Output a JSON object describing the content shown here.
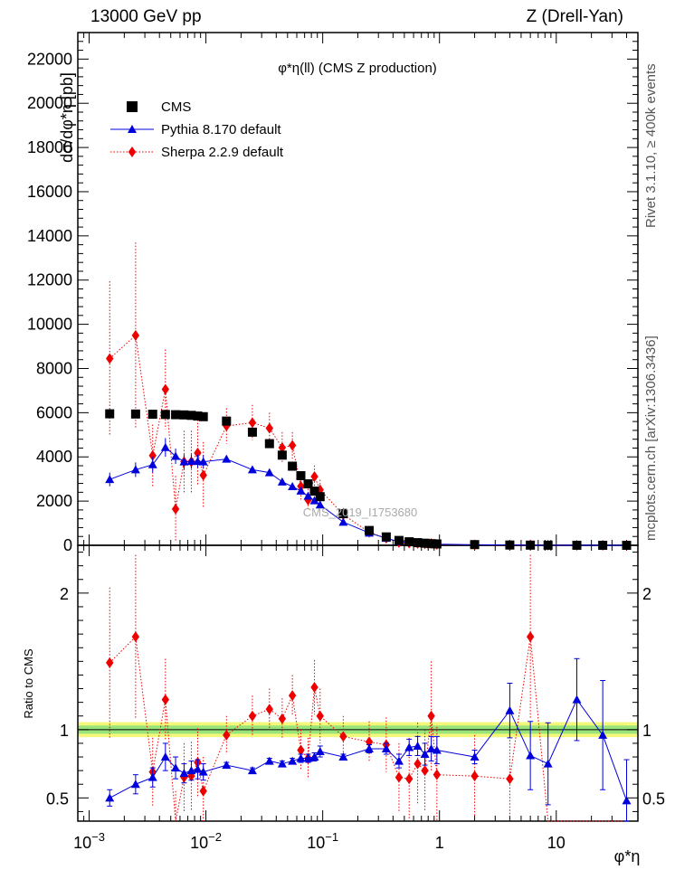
{
  "header": {
    "left": "13000 GeV pp",
    "right": "Z (Drell-Yan)",
    "side_top": "Rivet 3.1.10, ≥ 400k events",
    "side_bottom": "mcplots.cern.ch [arXiv:1306.3436]"
  },
  "chart_data": {
    "type": "scatter",
    "title": "φ*η(ll) (CMS Z production)",
    "watermark": "CMS_2019_I1753680",
    "xlabel": "φ*η",
    "ylabel": "dσ/dφ*η [pb]",
    "ratio_ylabel": "Ratio to CMS",
    "xscale": "log",
    "xlim": [
      0.0008,
      50
    ],
    "ylim": [
      0,
      23200
    ],
    "ratio_ylim": [
      0.33,
      2.35
    ],
    "x_ticks": [
      {
        "v": 0.001,
        "base": "10",
        "exp": "−3"
      },
      {
        "v": 0.01,
        "base": "10",
        "exp": "−2"
      },
      {
        "v": 0.1,
        "base": "10",
        "exp": "−1"
      },
      {
        "v": 1,
        "base": "1",
        "exp": ""
      },
      {
        "v": 10,
        "base": "10",
        "exp": ""
      }
    ],
    "y_ticks": [
      0,
      2000,
      4000,
      6000,
      8000,
      10000,
      12000,
      14000,
      16000,
      18000,
      20000,
      22000
    ],
    "y_tick_labels": [
      "0",
      "2000",
      "4000",
      "6000",
      "8000",
      "10000",
      "12000",
      "14000",
      "16000",
      "18000",
      "20000",
      "22000"
    ],
    "ratio_ticks": [
      0.5,
      1,
      2
    ],
    "ratio_tick_labels": [
      "0.5",
      "1",
      "2"
    ],
    "legend_position": "top-left",
    "x": [
      0.0015,
      0.0025,
      0.0035,
      0.0045,
      0.0055,
      0.0065,
      0.0075,
      0.0085,
      0.0095,
      0.015,
      0.025,
      0.035,
      0.045,
      0.055,
      0.065,
      0.075,
      0.085,
      0.095,
      0.15,
      0.25,
      0.35,
      0.45,
      0.55,
      0.65,
      0.75,
      0.85,
      0.95,
      2,
      4,
      6,
      8.5,
      15,
      25,
      40
    ],
    "series": [
      {
        "name": "CMS",
        "color": "#000000",
        "marker": "square",
        "values": [
          5950,
          5940,
          5930,
          5920,
          5910,
          5900,
          5880,
          5850,
          5820,
          5620,
          5120,
          4600,
          4080,
          3580,
          3150,
          2780,
          2450,
          2200,
          1430,
          670,
          380,
          220,
          160,
          120,
          95,
          75,
          62,
          32,
          13,
          8,
          5,
          2.5,
          1.2,
          0.6
        ]
      },
      {
        "name": "Pythia 8.170 default",
        "color": "#0000dd",
        "marker": "triangle",
        "values": [
          2980,
          3420,
          3650,
          4430,
          4030,
          3780,
          3800,
          3800,
          3780,
          3900,
          3420,
          3290,
          2870,
          2660,
          2460,
          2230,
          2020,
          1830,
          1050,
          560,
          320,
          170,
          130,
          105,
          78,
          63,
          52,
          25,
          14,
          6,
          3.5,
          3,
          1.1,
          0.3
        ],
        "errors": [
          310,
          330,
          360,
          420,
          350,
          330,
          320,
          300,
          300,
          110,
          100,
          90,
          90,
          80,
          70,
          70,
          70,
          60,
          50,
          30,
          20,
          12,
          10,
          8,
          7,
          6,
          5,
          3,
          2,
          1,
          0.5,
          0.5,
          0.3,
          0.1
        ]
      },
      {
        "name": "Sherpa 2.2.9 default",
        "color": "#ee0000",
        "marker": "diamond",
        "values": [
          8450,
          9500,
          4060,
          7060,
          1640,
          3780,
          3780,
          4180,
          3170,
          5400,
          5550,
          5300,
          4420,
          4520,
          2670,
          2050,
          3110,
          2510,
          1390,
          590,
          320,
          130,
          100,
          80,
          65,
          80,
          40,
          20,
          8,
          13,
          3,
          2,
          1,
          0.5
        ],
        "errors": [
          3500,
          4200,
          1400,
          1800,
          1500,
          1400,
          1400,
          1500,
          1500,
          800,
          800,
          700,
          700,
          600,
          600,
          500,
          500,
          450,
          300,
          150,
          80,
          60,
          50,
          40,
          30,
          30,
          25,
          15,
          8,
          10,
          3,
          2,
          1,
          0.5
        ]
      }
    ],
    "ratios": {
      "pythia": [
        0.5,
        0.6,
        0.65,
        0.8,
        0.72,
        0.68,
        0.7,
        0.71,
        0.69,
        0.74,
        0.7,
        0.77,
        0.75,
        0.77,
        0.79,
        0.79,
        0.8,
        0.84,
        0.8,
        0.86,
        0.86,
        0.77,
        0.87,
        0.88,
        0.82,
        0.86,
        0.85,
        0.8,
        1.14,
        0.81,
        0.75,
        1.22,
        0.96,
        0.48
      ],
      "pythia_err": [
        0.06,
        0.07,
        0.07,
        0.1,
        0.08,
        0.07,
        0.07,
        0.07,
        0.06,
        0.02,
        0.02,
        0.02,
        0.02,
        0.02,
        0.03,
        0.03,
        0.03,
        0.04,
        0.02,
        0.03,
        0.04,
        0.05,
        0.06,
        0.07,
        0.08,
        0.09,
        0.1,
        0.05,
        0.2,
        0.25,
        0.3,
        0.3,
        0.4,
        0.3
      ],
      "sherpa": [
        1.49,
        1.68,
        0.69,
        1.22,
        0.3,
        0.65,
        0.66,
        0.76,
        0.55,
        0.96,
        1.1,
        1.15,
        1.08,
        1.25,
        0.85,
        0.79,
        1.31,
        1.1,
        0.95,
        0.91,
        0.89,
        0.65,
        0.64,
        0.75,
        0.7,
        1.1,
        0.67,
        0.66,
        0.64,
        1.68,
        0.3,
        0.3,
        0.3,
        0.3
      ],
      "sherpa_err": [
        0.55,
        0.6,
        0.25,
        0.3,
        0.25,
        0.25,
        0.25,
        0.25,
        0.25,
        0.14,
        0.15,
        0.15,
        0.15,
        0.15,
        0.15,
        0.15,
        0.2,
        0.2,
        0.15,
        0.15,
        0.2,
        0.25,
        0.3,
        0.3,
        0.3,
        0.4,
        0.35,
        0.3,
        0.4,
        0.6,
        0,
        0,
        0,
        0
      ],
      "cms_band_inner": [
        0.97,
        1.03
      ],
      "cms_band_outer": [
        0.945,
        1.055
      ]
    }
  }
}
